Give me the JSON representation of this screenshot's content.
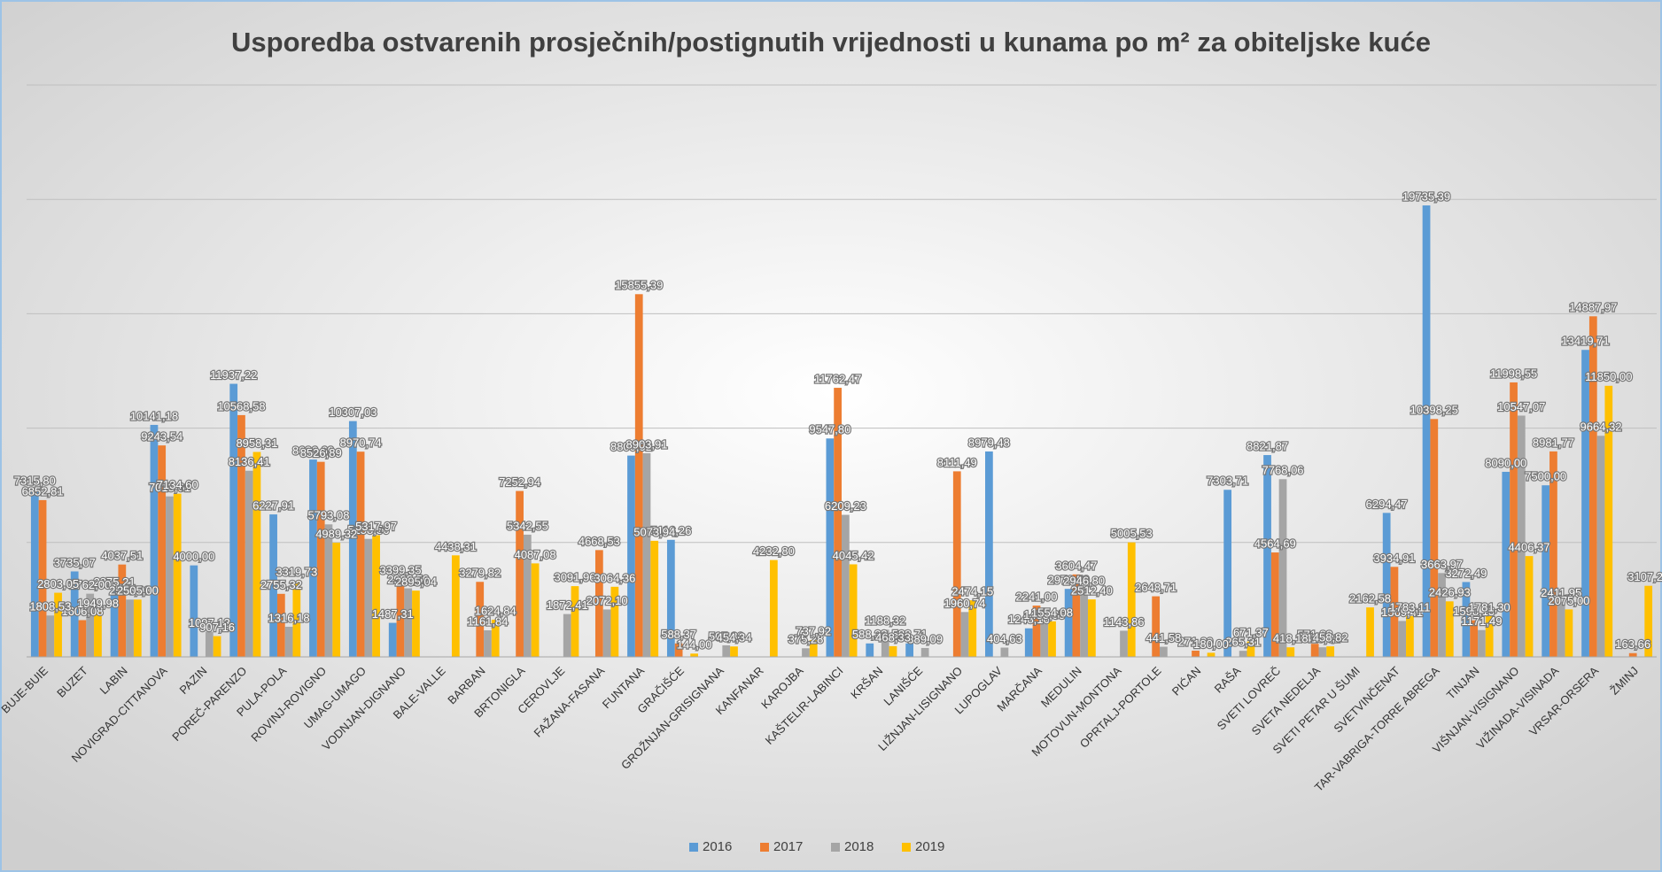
{
  "chart_data": {
    "type": "bar",
    "title": "Usporedba ostvarenih prosječnih/postignutih vrijednosti u kunama po m² za obiteljske kuće",
    "categories": [
      "BUJE-BUIE",
      "BUZET",
      "LABIN",
      "NOVIGRAD-CITTANOVA",
      "PAZIN",
      "POREČ-PARENZO",
      "PULA-POLA",
      "ROVINJ-ROVIGNO",
      "UMAG-UMAGO",
      "VODNJAN-DIGNANO",
      "BALE-VALLE",
      "BARBAN",
      "BRTONIGLA",
      "CEROVLJE",
      "FAŽANA-FASANA",
      "FUNTANA",
      "GRAČIŠĆE",
      "GROŽNJAN-GRISIGNANA",
      "KANFANAR",
      "KAROJBA",
      "KAŠTELIR-LABINCI",
      "KRŠAN",
      "LANIŠĆE",
      "LIŽNJAN-LISIGNANO",
      "LUPOGLAV",
      "MARČANA",
      "MEDULIN",
      "MOTOVUN-MONTONA",
      "OPRTALJ-PORTOLE",
      "PIĆAN",
      "RAŠA",
      "SVETI LOVREČ",
      "SVETA NEDELJA",
      "SVETI PETAR U ŠUMI",
      "SVETVINČENAT",
      "TAR-VABRIGA-TORRE ABREGA",
      "TINJAN",
      "VIŠNJAN-VISIGNANO",
      "VIŽINADA-VISINADA",
      "VRSAR-ORSERA",
      "ŽMINJ"
    ],
    "series": [
      {
        "name": "2016",
        "color": "#5b9bd5",
        "values": [
          7315.8,
          3735.07,
          2875.21,
          10141.18,
          4000.0,
          11937.22,
          6227.91,
          8626.69,
          10307.03,
          1487.31,
          null,
          null,
          null,
          null,
          null,
          8800.02,
          5116.26,
          null,
          null,
          null,
          9547.8,
          588.33,
          588.71,
          null,
          8979.48,
          1248.16,
          2972.5,
          null,
          null,
          null,
          7303.71,
          8821.87,
          null,
          null,
          6294.47,
          19735.39,
          3272.49,
          8090.0,
          7500.0,
          13419.71,
          null
        ],
        "value_labels": [
          "7315,80",
          "3735,07",
          "2875,21",
          "10141,18",
          "4000,00",
          "11937,22",
          "6227,91",
          "8626,69",
          "10307,03",
          "1487,31",
          null,
          null,
          null,
          null,
          null,
          "8800,02",
          "5116,26",
          null,
          null,
          null,
          "9547,80",
          "588,33",
          "588,71",
          null,
          "8979,48",
          "1248,16",
          "2972,50",
          null,
          null,
          null,
          "7303,71",
          "8821,87",
          null,
          null,
          "6294,47",
          "19735,39",
          "3272,49",
          "8090,00",
          "7500,00",
          "13419,71",
          null
        ]
      },
      {
        "name": "2017",
        "color": "#ed7d31",
        "values": [
          6852.81,
          1606.08,
          4037.51,
          9243.54,
          null,
          10568.58,
          2755.32,
          8526.89,
          8970.74,
          3399.35,
          null,
          3279.82,
          7252.94,
          null,
          4668.53,
          15855.39,
          588.37,
          null,
          null,
          null,
          11762.47,
          null,
          null,
          8111.49,
          null,
          2241.0,
          3604.47,
          null,
          2648.71,
          271.29,
          null,
          4564.69,
          571.82,
          null,
          3934.91,
          10398.25,
          1598.13,
          11998.55,
          8981.77,
          14887.97,
          163.66
        ],
        "value_labels": [
          "6852,81",
          "1606,08",
          "4037,51",
          "9243,54",
          null,
          "10568,58",
          "2755,32",
          "8526,89",
          "8970,74",
          "3399,35",
          null,
          "3279,82",
          "7252,94",
          null,
          "4668,53",
          "15855,39",
          "588,37",
          null,
          null,
          null,
          "11762,47",
          null,
          null,
          "8111,49",
          null,
          "2241,00",
          "3604,47",
          null,
          "2648,71",
          "271,29",
          null,
          "4564,69",
          "571,82",
          null,
          "3934,91",
          "10398,25",
          "1598,13",
          "11998,55",
          "8981,77",
          "14887,97",
          "163,66"
        ]
      },
      {
        "name": "2018",
        "color": "#a5a5a5",
        "values": [
          1808.53,
          2762.0,
          2505.08,
          7015.61,
          1097.13,
          8136.41,
          1316.18,
          5793.08,
          5158.56,
          2998.5,
          null,
          1161.84,
          5342.55,
          1872.41,
          2072.1,
          8903.91,
          null,
          505.88,
          null,
          375.28,
          6209.23,
          1188.32,
          389.09,
          1960.74,
          404.63,
          1455.35,
          2946.8,
          1143.86,
          441.58,
          null,
          265.31,
          7768.06,
          418.82,
          null,
          1569.41,
          3663.97,
          1171.49,
          10547.07,
          2411.95,
          9664.32,
          null
        ],
        "value_labels": [
          "1808,53",
          "2762,00",
          "2505,08",
          "7015,61",
          "1097,13",
          "8136,41",
          "1316,18",
          "5793,08",
          "5158,56",
          "2998,50",
          null,
          "1161,84",
          "5342,55",
          "1872,41",
          "2072,10",
          "8903,91",
          null,
          "505,88",
          null,
          "375,28",
          "6209,23",
          "1188,32",
          "389,09",
          "1960,74",
          "404,63",
          "1455,35",
          "2946,80",
          "1143,86",
          "441,58",
          null,
          "265,31",
          "7768,06",
          "418,82",
          null,
          "1569,41",
          "3663,97",
          "1171,49",
          "10547,07",
          "2411,95",
          "9664,32",
          null
        ]
      },
      {
        "name": "2019",
        "color": "#ffc000",
        "values": [
          2803.05,
          1949.98,
          2505.0,
          7134.6,
          907.16,
          8958.31,
          3319.73,
          4989.32,
          5317.97,
          2895.04,
          4438.31,
          1624.84,
          4087.08,
          3091.96,
          3064.36,
          5073.94,
          144.0,
          454.34,
          4232.8,
          737.92,
          4045.42,
          468.33,
          null,
          2474.15,
          null,
          1554.08,
          2512.4,
          5005.53,
          null,
          180.0,
          671.37,
          418.18,
          458.82,
          2162.58,
          1783.11,
          2426.93,
          1781.3,
          4406.37,
          2075.0,
          11850.0,
          3107.21
        ],
        "value_labels": [
          "2803,05",
          "1949,98",
          "2505,00",
          "7134,60",
          "907,16",
          "8958,31",
          "3319,73",
          "4989,32",
          "5317,97",
          "2895,04",
          "4438,31",
          "1624,84",
          "4087,08",
          "3091,96",
          "3064,36",
          "5073,94",
          "144,00",
          "454,34",
          "4232,80",
          "737,92",
          "4045,42",
          "468,33",
          null,
          "2474,15",
          null,
          "1554,08",
          "2512,40",
          "5005,53",
          null,
          "180,00",
          "671,37",
          "418,18",
          "458,82",
          "2162,58",
          "1783,11",
          "2426,93",
          "1781,30",
          "4406,37",
          "2075,00",
          "11850,00",
          "3107,21"
        ]
      }
    ],
    "ylim": [
      0,
      25000
    ],
    "yticks": [
      0,
      5000,
      10000,
      15000,
      20000,
      25000
    ],
    "grid": true,
    "legend": "bottom"
  }
}
